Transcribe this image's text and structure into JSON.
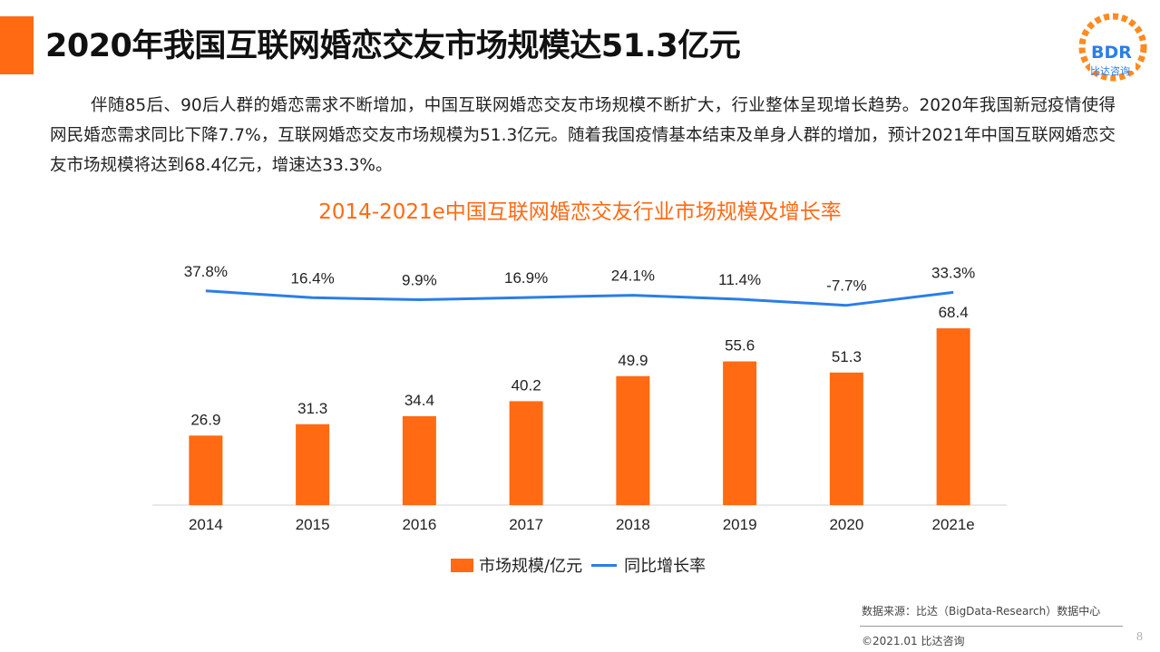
{
  "header": {
    "title": "2020年我国互联网婚恋交友市场规模达51.3亿元",
    "logo_text": "BDR",
    "logo_sub": "比达咨询"
  },
  "intro": "伴随85后、90后人群的婚恋需求不断增加，中国互联网婚恋交友市场规模不断扩大，行业整体呈现增长趋势。2020年我国新冠疫情使得网民婚恋需求同比下降7.7%，互联网婚恋交友市场规模为51.3亿元。随着我国疫情基本结束及单身人群的增加，预计2021年中国互联网婚恋交友市场规模将达到68.4亿元，增速达33.3%。",
  "chart_data": {
    "type": "bar",
    "title": "2014-2021e中国互联网婚恋交友行业市场规模及增长率",
    "categories": [
      "2014",
      "2015",
      "2016",
      "2017",
      "2018",
      "2019",
      "2020",
      "2021e"
    ],
    "series": [
      {
        "name": "市场规模/亿元",
        "type": "bar",
        "values": [
          26.9,
          31.3,
          34.4,
          40.2,
          49.9,
          55.6,
          51.3,
          68.4
        ],
        "labels": [
          "26.9",
          "31.3",
          "34.4",
          "40.2",
          "49.9",
          "55.6",
          "51.3",
          "68.4"
        ],
        "color": "#ff6a13"
      },
      {
        "name": "同比增长率",
        "type": "line",
        "values": [
          37.8,
          16.4,
          9.9,
          16.9,
          24.1,
          11.4,
          -7.7,
          33.3
        ],
        "labels": [
          "37.8%",
          "16.4%",
          "9.9%",
          "16.9%",
          "24.1%",
          "11.4%",
          "-7.7%",
          "33.3%"
        ],
        "color": "#2a7ee8"
      }
    ],
    "legend": "bottom"
  },
  "legend": {
    "bar_label": "市场规模/亿元",
    "line_label": "同比增长率"
  },
  "footer": {
    "source": "数据来源：比达（BigData-Research）数据中心",
    "copyright": "©2021.01  比达咨询",
    "page": "8"
  }
}
